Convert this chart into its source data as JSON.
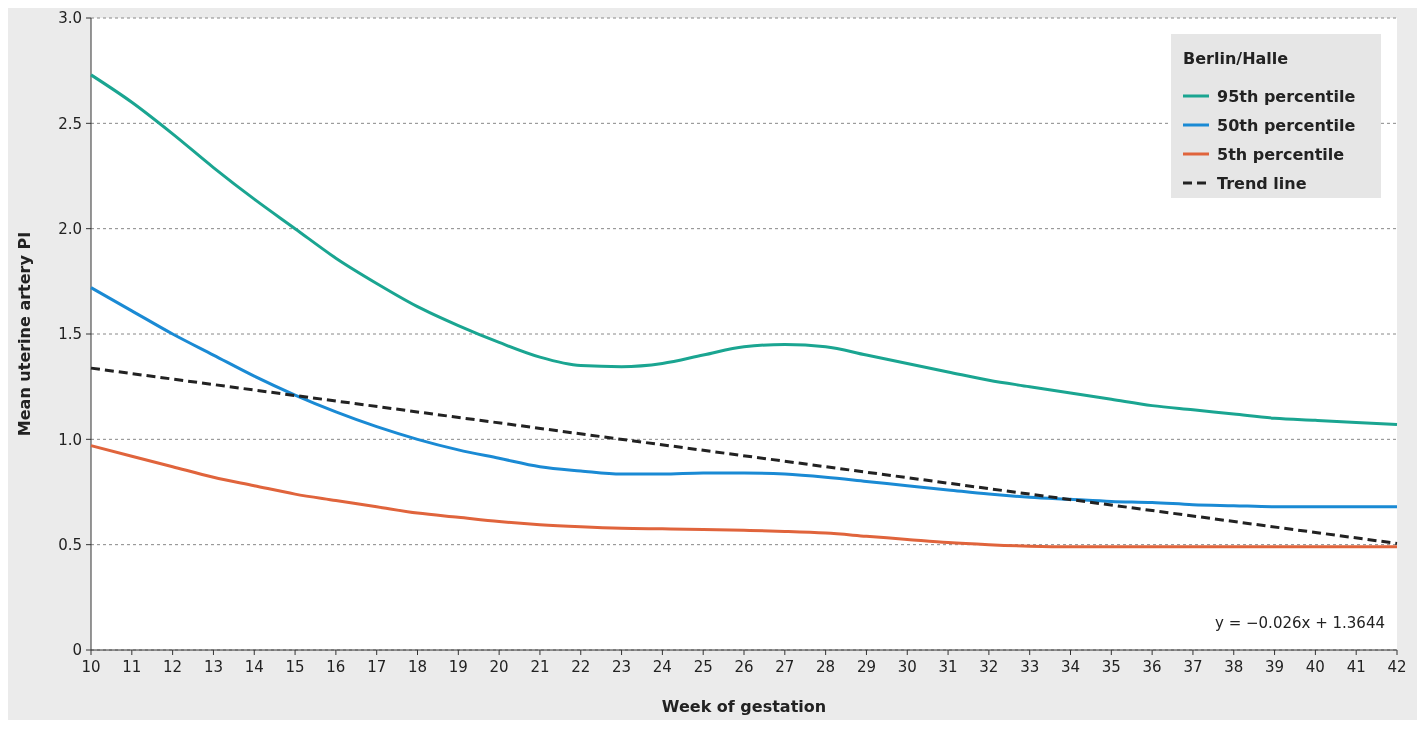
{
  "chart_data": {
    "type": "line",
    "xlabel": "Week of gestation",
    "ylabel": "Mean uterine artery PI",
    "legend_title": "Berlin/Halle",
    "x": [
      10,
      11,
      12,
      13,
      14,
      15,
      16,
      17,
      18,
      19,
      20,
      21,
      22,
      23,
      24,
      25,
      26,
      27,
      28,
      29,
      30,
      31,
      32,
      33,
      34,
      35,
      36,
      37,
      38,
      39,
      40,
      41,
      42
    ],
    "series": [
      {
        "name": "95th percentile",
        "color": "#1aa591",
        "values": [
          2.73,
          2.6,
          2.45,
          2.29,
          2.14,
          2.0,
          1.86,
          1.74,
          1.63,
          1.54,
          1.46,
          1.39,
          1.35,
          1.345,
          1.36,
          1.4,
          1.44,
          1.45,
          1.44,
          1.4,
          1.36,
          1.32,
          1.28,
          1.25,
          1.22,
          1.19,
          1.16,
          1.14,
          1.12,
          1.1,
          1.09,
          1.08,
          1.07
        ]
      },
      {
        "name": "50th percentile",
        "color": "#1a8ad4",
        "values": [
          1.72,
          1.61,
          1.5,
          1.4,
          1.3,
          1.21,
          1.13,
          1.06,
          1.0,
          0.95,
          0.91,
          0.87,
          0.85,
          0.835,
          0.835,
          0.84,
          0.84,
          0.835,
          0.82,
          0.8,
          0.78,
          0.76,
          0.74,
          0.725,
          0.715,
          0.705,
          0.7,
          0.69,
          0.685,
          0.68,
          0.68,
          0.68,
          0.68
        ]
      },
      {
        "name": "5th percentile",
        "color": "#e0643c",
        "values": [
          0.97,
          0.92,
          0.87,
          0.82,
          0.78,
          0.74,
          0.71,
          0.68,
          0.65,
          0.63,
          0.61,
          0.595,
          0.585,
          0.578,
          0.575,
          0.572,
          0.568,
          0.563,
          0.555,
          0.54,
          0.525,
          0.51,
          0.5,
          0.493,
          0.49,
          0.49,
          0.49,
          0.49,
          0.49,
          0.49,
          0.49,
          0.49,
          0.49
        ]
      },
      {
        "name": "Trend line",
        "type": "line",
        "color": "#222222",
        "line_style": "dashed",
        "x": [
          10,
          42
        ],
        "values": [
          1.338,
          0.506
        ]
      }
    ],
    "xlim": [
      10,
      42
    ],
    "xticks": [
      10,
      11,
      12,
      13,
      14,
      15,
      16,
      17,
      18,
      19,
      20,
      21,
      22,
      23,
      24,
      25,
      26,
      27,
      28,
      29,
      30,
      31,
      32,
      33,
      34,
      35,
      36,
      37,
      38,
      39,
      40,
      41,
      42
    ],
    "ylim": [
      0,
      3
    ],
    "yticks": [
      0,
      0.5,
      {
        "value": 1,
        "label": "1.0"
      },
      1.5,
      {
        "value": 2,
        "label": "2.0"
      },
      2.5,
      {
        "value": 3,
        "label": "3.0"
      }
    ],
    "grid": "y",
    "legend": "top right",
    "line_style": "solid",
    "marker": "none",
    "annotations": [
      "y = −0.026x + 1.3644"
    ]
  }
}
